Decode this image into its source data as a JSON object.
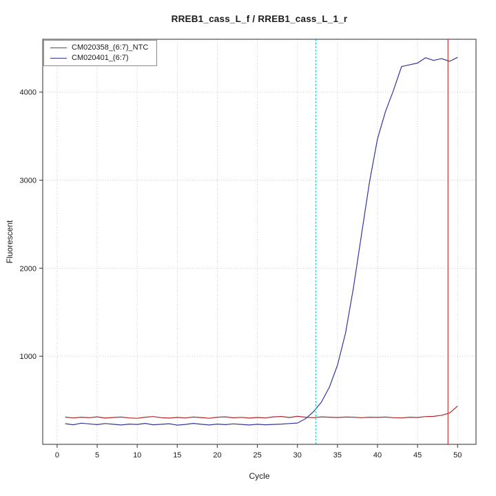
{
  "figure": {
    "title": "RREB1_cass_L_f / RREB1_cass_L_1_r"
  },
  "chart_data": {
    "type": "line",
    "title": "RREB1_cass_L_f / RREB1_cass_L_1_r",
    "xlabel": "Cycle",
    "ylabel": "Fluorescent",
    "xlim": [
      -1.8,
      52.3
    ],
    "ylim": [
      0,
      4600
    ],
    "x_ticks": [
      0,
      5,
      10,
      15,
      20,
      25,
      30,
      35,
      40,
      45,
      50
    ],
    "y_ticks": [
      1000,
      2000,
      3000,
      4000
    ],
    "grid": "dotted",
    "grid_color": "#c6c6c6",
    "axis_color": "#4d4d4d",
    "legend_position": "top-left",
    "cycles": [
      1,
      2,
      3,
      4,
      5,
      6,
      7,
      8,
      9,
      10,
      11,
      12,
      13,
      14,
      15,
      16,
      17,
      18,
      19,
      20,
      21,
      22,
      23,
      24,
      25,
      26,
      27,
      28,
      29,
      30,
      31,
      32,
      33,
      34,
      35,
      36,
      37,
      38,
      39,
      40,
      41,
      42,
      43,
      44,
      45,
      46,
      47,
      48,
      49,
      50
    ],
    "series": [
      {
        "name": "CM020358_(6:7)_NTC",
        "color": "#b22222",
        "values": [
          310,
          300,
          308,
          303,
          312,
          298,
          305,
          310,
          300,
          296,
          308,
          315,
          303,
          298,
          306,
          300,
          310,
          304,
          296,
          308,
          312,
          301,
          307,
          298,
          305,
          300,
          312,
          316,
          305,
          318,
          308,
          303,
          312,
          308,
          305,
          310,
          308,
          303,
          308,
          306,
          310,
          303,
          300,
          308,
          305,
          315,
          318,
          330,
          355,
          435
        ]
      },
      {
        "name": "CM020401_(6:7)",
        "color": "#3333a0",
        "values": [
          235,
          222,
          240,
          232,
          224,
          236,
          228,
          220,
          230,
          226,
          238,
          222,
          228,
          234,
          218,
          226,
          238,
          228,
          220,
          230,
          224,
          232,
          226,
          220,
          228,
          222,
          226,
          230,
          236,
          242,
          290,
          370,
          480,
          650,
          900,
          1260,
          1780,
          2380,
          2980,
          3470,
          3780,
          4020,
          4290,
          4310,
          4330,
          4390,
          4360,
          4380,
          4350,
          4395
        ]
      }
    ],
    "vlines": [
      {
        "x": 32.3,
        "color": "#00cccc",
        "style": "dashed"
      },
      {
        "x": 48.8,
        "color": "#cc3333",
        "style": "solid"
      }
    ]
  }
}
